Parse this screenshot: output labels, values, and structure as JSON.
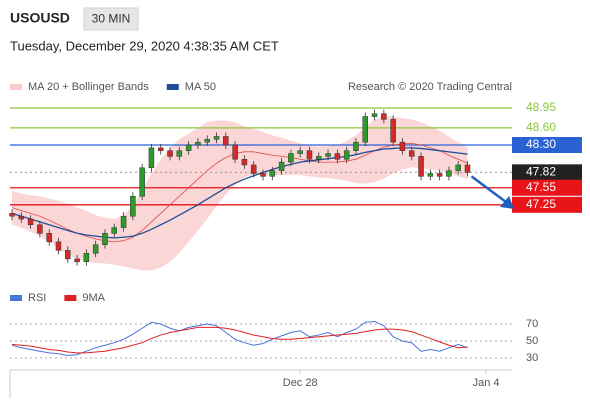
{
  "header": {
    "symbol": "USOUSD",
    "interval": "30 MIN",
    "datetime": "Tuesday, December 29, 2020 4:38:35 AM CET"
  },
  "chart_data": [
    {
      "type": "candlestick",
      "source": "Research © 2020 Trading Central",
      "xlim": [
        0,
        54
      ],
      "ylim": [
        45.93,
        49.09
      ],
      "up_color": "#2e9a2e",
      "down_color": "#d42a2a",
      "ohlc": {
        "open": [
          47.1,
          47.05,
          47.0,
          46.9,
          46.75,
          46.6,
          46.45,
          46.3,
          46.25,
          46.4,
          46.55,
          46.75,
          46.85,
          47.05,
          47.4,
          47.9,
          48.25,
          48.2,
          48.1,
          48.2,
          48.3,
          48.35,
          48.4,
          48.45,
          48.3,
          48.05,
          47.95,
          47.8,
          47.75,
          47.85,
          48.0,
          48.15,
          48.2,
          48.05,
          48.1,
          48.15,
          48.05,
          48.2,
          48.35,
          48.8,
          48.85,
          48.75,
          48.35,
          48.2,
          48.1,
          47.75,
          47.8,
          47.75,
          47.85,
          47.95
        ],
        "high": [
          47.17,
          47.12,
          47.07,
          46.97,
          46.82,
          46.67,
          46.52,
          46.37,
          46.47,
          46.62,
          46.82,
          46.92,
          47.12,
          47.47,
          47.97,
          48.32,
          48.32,
          48.27,
          48.27,
          48.37,
          48.42,
          48.47,
          48.52,
          48.52,
          48.37,
          48.12,
          48.02,
          47.87,
          47.92,
          48.07,
          48.22,
          48.27,
          48.27,
          48.17,
          48.22,
          48.22,
          48.27,
          48.42,
          48.87,
          48.92,
          48.92,
          48.82,
          48.42,
          48.27,
          48.17,
          47.87,
          47.87,
          47.92,
          48.02,
          48.02
        ],
        "low": [
          46.98,
          46.93,
          46.83,
          46.68,
          46.53,
          46.38,
          46.23,
          46.18,
          46.18,
          46.33,
          46.48,
          46.68,
          46.78,
          46.98,
          47.33,
          47.83,
          48.13,
          48.03,
          48.03,
          48.13,
          48.23,
          48.28,
          48.33,
          48.23,
          47.98,
          47.88,
          47.73,
          47.68,
          47.68,
          47.78,
          47.93,
          48.08,
          47.98,
          47.98,
          48.03,
          47.98,
          47.98,
          48.13,
          48.28,
          48.73,
          48.68,
          48.28,
          48.13,
          48.03,
          47.68,
          47.68,
          47.68,
          47.68,
          47.78,
          47.75
        ],
        "close": [
          47.05,
          47.0,
          46.9,
          46.75,
          46.6,
          46.45,
          46.3,
          46.25,
          46.4,
          46.55,
          46.75,
          46.85,
          47.05,
          47.4,
          47.9,
          48.25,
          48.2,
          48.1,
          48.2,
          48.3,
          48.35,
          48.4,
          48.45,
          48.3,
          48.05,
          47.95,
          47.8,
          47.75,
          47.85,
          48.0,
          48.15,
          48.2,
          48.05,
          48.1,
          48.15,
          48.05,
          48.2,
          48.35,
          48.8,
          48.85,
          48.75,
          48.35,
          48.2,
          48.1,
          47.75,
          47.8,
          47.75,
          47.85,
          47.95,
          47.82
        ]
      },
      "series": [
        {
          "name": "MA 20 + Bollinger Bands",
          "color": "#e04848",
          "band_color": "#f9cccc",
          "values": [
            47.2,
            47.15,
            47.1,
            47.05,
            46.98,
            46.9,
            46.82,
            46.75,
            46.7,
            46.65,
            46.62,
            46.6,
            46.62,
            46.68,
            46.8,
            46.95,
            47.1,
            47.25,
            47.4,
            47.55,
            47.7,
            47.85,
            47.98,
            48.08,
            48.15,
            48.18,
            48.18,
            48.15,
            48.12,
            48.1,
            48.08,
            48.05,
            48.02,
            48.0,
            48.0,
            48.0,
            48.02,
            48.05,
            48.12,
            48.2,
            48.26,
            48.3,
            48.32,
            48.33,
            48.3,
            48.25,
            48.2,
            48.12,
            48.05,
            47.98
          ],
          "upper": [
            47.5,
            47.45,
            47.42,
            47.4,
            47.36,
            47.32,
            47.27,
            47.2,
            47.15,
            47.07,
            47.02,
            47.0,
            47.07,
            47.23,
            47.5,
            47.8,
            48.05,
            48.25,
            48.4,
            48.5,
            48.6,
            48.7,
            48.73,
            48.73,
            48.7,
            48.63,
            48.58,
            48.53,
            48.47,
            48.43,
            48.38,
            48.33,
            48.29,
            48.27,
            48.28,
            48.3,
            48.37,
            48.47,
            48.62,
            48.75,
            48.81,
            48.8,
            48.77,
            48.75,
            48.7,
            48.63,
            48.55,
            48.44,
            48.35,
            48.26
          ],
          "lower": [
            46.9,
            46.85,
            46.78,
            46.7,
            46.6,
            46.48,
            46.37,
            46.3,
            46.25,
            46.23,
            46.22,
            46.2,
            46.17,
            46.13,
            46.1,
            46.1,
            46.15,
            46.25,
            46.4,
            46.6,
            46.8,
            47.0,
            47.23,
            47.43,
            47.6,
            47.73,
            47.78,
            47.77,
            47.77,
            47.77,
            47.78,
            47.77,
            47.75,
            47.73,
            47.72,
            47.7,
            47.67,
            47.63,
            47.62,
            47.65,
            47.71,
            47.8,
            47.87,
            47.91,
            47.9,
            47.87,
            47.85,
            47.8,
            47.75,
            47.7
          ]
        },
        {
          "name": "MA 50",
          "color": "#1f4e99",
          "values": [
            47.1,
            47.05,
            47.0,
            46.95,
            46.9,
            46.85,
            46.8,
            46.75,
            46.72,
            46.7,
            46.68,
            46.67,
            46.68,
            46.7,
            46.75,
            46.82,
            46.9,
            46.98,
            47.07,
            47.16,
            47.25,
            47.35,
            47.45,
            47.55,
            47.63,
            47.7,
            47.76,
            47.82,
            47.87,
            47.92,
            47.96,
            48.0,
            48.02,
            48.04,
            48.06,
            48.08,
            48.1,
            48.13,
            48.17,
            48.2,
            48.23,
            48.24,
            48.25,
            48.25,
            48.24,
            48.22,
            48.2,
            48.18,
            48.16,
            48.14
          ]
        }
      ],
      "levels": [
        {
          "value": 48.95,
          "label": "48.95",
          "color": "#8dc63f",
          "boxed": false,
          "dotted": false
        },
        {
          "value": 48.6,
          "label": "48.60",
          "color": "#8dc63f",
          "boxed": false,
          "dotted": false
        },
        {
          "value": 48.3,
          "label": "48.30",
          "color": "#2a62d4",
          "boxed": true,
          "dotted": false
        },
        {
          "value": 47.82,
          "label": "47.82",
          "color": "#222222",
          "boxed": true,
          "dotted": true
        },
        {
          "value": 47.55,
          "label": "47.55",
          "color": "#e8141a",
          "boxed": true,
          "dotted": false
        },
        {
          "value": 47.25,
          "label": "47.25",
          "color": "#e8141a",
          "boxed": true,
          "dotted": false
        }
      ]
    },
    {
      "type": "line",
      "xlim": [
        0,
        54
      ],
      "ylim": [
        10,
        90
      ],
      "yticks": [
        70,
        50,
        30
      ],
      "xticks": [
        {
          "value": 31,
          "label": "Dec 28"
        },
        {
          "value": 51,
          "label": "Jan 4"
        }
      ],
      "series": [
        {
          "name": "RSI",
          "color": "#4a74d8",
          "values": [
            45,
            42,
            40,
            38,
            36,
            35,
            33,
            34,
            38,
            42,
            45,
            48,
            52,
            58,
            65,
            72,
            70,
            65,
            62,
            66,
            68,
            70,
            68,
            60,
            52,
            48,
            45,
            47,
            52,
            56,
            60,
            62,
            55,
            57,
            60,
            55,
            60,
            64,
            72,
            73,
            68,
            55,
            50,
            48,
            38,
            40,
            38,
            42,
            46,
            42
          ]
        },
        {
          "name": "9MA",
          "color": "#e02020",
          "values": [
            46,
            45,
            44,
            42,
            40,
            39,
            37,
            36,
            36,
            37,
            38,
            40,
            42,
            45,
            48,
            53,
            57,
            60,
            62,
            64,
            66,
            66,
            66,
            65,
            63,
            60,
            57,
            55,
            53,
            52,
            52,
            53,
            54,
            55,
            56,
            57,
            58,
            59,
            61,
            63,
            64,
            64,
            63,
            61,
            57,
            53,
            49,
            45,
            42,
            43
          ]
        }
      ]
    }
  ]
}
